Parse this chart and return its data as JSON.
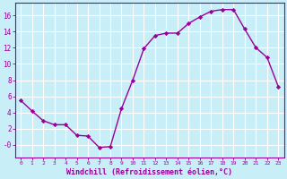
{
  "x": [
    0,
    1,
    2,
    3,
    4,
    5,
    6,
    7,
    8,
    9,
    10,
    11,
    12,
    13,
    14,
    15,
    16,
    17,
    18,
    19,
    20,
    21,
    22,
    23
  ],
  "y": [
    5.5,
    4.2,
    3.0,
    2.5,
    2.5,
    1.2,
    1.1,
    -0.3,
    -0.2,
    4.5,
    8.0,
    11.9,
    13.5,
    13.8,
    13.8,
    15.0,
    15.8,
    16.5,
    16.7,
    16.7,
    14.3,
    12.0,
    10.8,
    7.2
  ],
  "line_color": "#990099",
  "marker_color": "#990099",
  "bg_color": "#c8eef8",
  "grid_color": "#aaddee",
  "xlabel": "Windchill (Refroidissement éolien,°C)",
  "ylim": [
    -1.5,
    17.5
  ],
  "xlim": [
    -0.5,
    23.5
  ],
  "yticks": [
    0,
    2,
    4,
    6,
    8,
    10,
    12,
    14,
    16
  ],
  "ytick_labels": [
    "-0",
    "2",
    "4",
    "6",
    "8",
    "10",
    "12",
    "14",
    "16"
  ],
  "xticks": [
    0,
    1,
    2,
    3,
    4,
    5,
    6,
    7,
    8,
    9,
    10,
    11,
    12,
    13,
    14,
    15,
    16,
    17,
    18,
    19,
    20,
    21,
    22,
    23
  ],
  "axis_label_color": "#990099",
  "tick_color": "#990099",
  "border_color": "#990099",
  "xlabel_fontsize": 6.0,
  "tick_fontsize_x": 4.5,
  "tick_fontsize_y": 5.5
}
